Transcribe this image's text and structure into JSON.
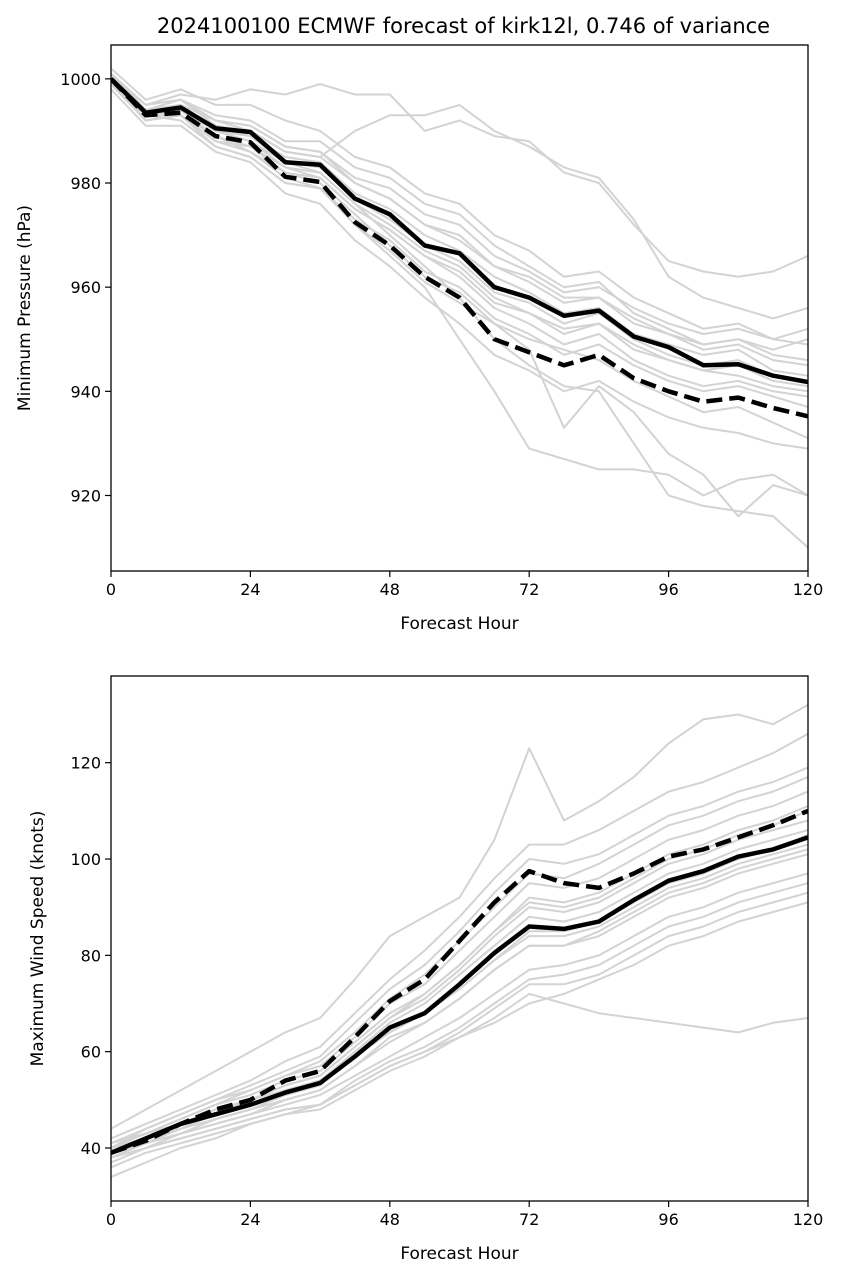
{
  "chart_data": [
    {
      "type": "line",
      "title": "2024100100 ECMWF forecast of kirk12l, 0.746 of variance",
      "xlabel": "Forecast Hour",
      "ylabel": "Minimum Pressure (hPa)",
      "xlim": [
        0,
        120
      ],
      "ylim": [
        905.5,
        1006.5
      ],
      "xticks": [
        0,
        24,
        48,
        72,
        96,
        120
      ],
      "yticks": [
        920,
        940,
        960,
        980,
        1000
      ],
      "grid": false,
      "colors": {
        "ensemble": "#d3d3d3",
        "highlight": "#000000"
      },
      "x": [
        0,
        6,
        12,
        18,
        24,
        30,
        36,
        42,
        48,
        54,
        60,
        66,
        72,
        78,
        84,
        90,
        96,
        102,
        108,
        114,
        120
      ],
      "series": [
        {
          "style": "solid",
          "values": [
            1000,
            993.5,
            994.5,
            990.5,
            989.8,
            984,
            983.5,
            977,
            974,
            968,
            966.5,
            960,
            958,
            954.5,
            955.5,
            950.5,
            948.5,
            945,
            945.2,
            943,
            941.8
          ]
        },
        {
          "style": "dashed",
          "values": [
            1000,
            993,
            993.5,
            989,
            987.8,
            981.2,
            980.2,
            972.5,
            968,
            962,
            958,
            950,
            947.5,
            945,
            947,
            942.5,
            940,
            938,
            938.8,
            936.8,
            935.2
          ]
        },
        {
          "style": "ensemble",
          "values": [
            1001,
            994,
            996,
            992,
            991,
            987,
            986,
            980,
            977,
            972,
            970,
            964,
            961,
            957,
            958,
            953,
            951,
            948,
            949,
            946,
            945
          ]
        },
        {
          "style": "ensemble",
          "values": [
            999,
            992,
            993,
            988,
            987,
            982,
            981,
            975,
            971,
            966,
            963,
            957,
            955,
            951,
            953,
            948,
            946,
            944,
            943,
            941,
            940
          ]
        },
        {
          "style": "ensemble",
          "values": [
            1002,
            996,
            998,
            995,
            995,
            992,
            990,
            985,
            983,
            978,
            976,
            970,
            967,
            962,
            963,
            958,
            955,
            952,
            953,
            950,
            949
          ]
        },
        {
          "style": "ensemble",
          "values": [
            998,
            991,
            991,
            986,
            984,
            978,
            976,
            969,
            964,
            958,
            953,
            947,
            944,
            940,
            942,
            938,
            935,
            933,
            932,
            930,
            929
          ]
        },
        {
          "style": "ensemble",
          "values": [
            1000,
            995,
            997,
            996,
            998,
            997,
            999,
            997,
            997,
            990,
            992,
            989,
            988,
            982,
            980,
            972,
            965,
            963,
            962,
            963,
            966
          ]
        },
        {
          "style": "ensemble",
          "values": [
            1000,
            994,
            995,
            992,
            990,
            986,
            985,
            990,
            993,
            993,
            995,
            990,
            987,
            983,
            981,
            973,
            962,
            958,
            956,
            954,
            956
          ]
        },
        {
          "style": "ensemble",
          "values": [
            999,
            993,
            992,
            987,
            985,
            980,
            979,
            972,
            966,
            960,
            950,
            940,
            929,
            927,
            925,
            925,
            924,
            920,
            923,
            924,
            920
          ]
        },
        {
          "style": "ensemble",
          "values": [
            1001,
            993,
            994,
            990,
            988,
            983,
            982,
            976,
            970,
            964,
            958,
            950,
            945,
            941,
            940,
            930,
            920,
            918,
            917,
            916,
            910
          ]
        },
        {
          "style": "ensemble",
          "values": [
            1000,
            992,
            993,
            989,
            986,
            981,
            979,
            972,
            967,
            961,
            957,
            953,
            948,
            933,
            941,
            936,
            928,
            924,
            916,
            922,
            920
          ]
        },
        {
          "style": "ensemble",
          "values": [
            1000,
            995,
            996,
            993,
            992,
            988,
            988,
            983,
            981,
            976,
            974,
            968,
            964,
            960,
            961,
            955,
            952,
            949,
            950,
            947,
            946
          ]
        },
        {
          "style": "ensemble",
          "values": [
            999,
            994,
            995,
            990,
            989,
            985,
            984,
            978,
            975,
            970,
            967,
            962,
            959,
            955,
            956,
            951,
            949,
            947,
            948,
            944,
            943
          ]
        },
        {
          "style": "ensemble",
          "values": [
            1001,
            993,
            994,
            991,
            989,
            984,
            983,
            977,
            973,
            968,
            965,
            959,
            957,
            953,
            955,
            950,
            947,
            945,
            946,
            943,
            942
          ]
        },
        {
          "style": "ensemble",
          "values": [
            1000,
            994,
            996,
            991,
            990,
            986,
            985,
            980,
            977,
            972,
            969,
            964,
            962,
            958,
            958,
            954,
            951,
            949,
            950,
            948,
            950
          ]
        },
        {
          "style": "ensemble",
          "values": [
            1000,
            993,
            994,
            989,
            987,
            983,
            981,
            975,
            971,
            966,
            962,
            956,
            953,
            949,
            951,
            946,
            943,
            941,
            942,
            940,
            939
          ]
        },
        {
          "style": "ensemble",
          "values": [
            999,
            992,
            993,
            987,
            985,
            980,
            979,
            973,
            969,
            963,
            960,
            954,
            951,
            947,
            949,
            945,
            942,
            940,
            941,
            939,
            937
          ]
        },
        {
          "style": "ensemble",
          "values": [
            1001,
            995,
            996,
            992,
            991,
            987,
            986,
            981,
            979,
            974,
            972,
            966,
            963,
            959,
            960,
            956,
            953,
            951,
            952,
            950,
            952
          ]
        },
        {
          "style": "ensemble",
          "values": [
            1000,
            994,
            995,
            990,
            988,
            984,
            982,
            976,
            972,
            967,
            964,
            958,
            955,
            952,
            953,
            949,
            946,
            944,
            945,
            942,
            941
          ]
        },
        {
          "style": "ensemble",
          "values": [
            1000,
            993,
            993,
            988,
            986,
            982,
            980,
            974,
            968,
            962,
            959,
            953,
            950,
            948,
            946,
            942,
            939,
            936,
            937,
            934,
            931
          ]
        }
      ]
    },
    {
      "type": "line",
      "xlabel": "Forecast Hour",
      "ylabel": "Maximum Wind Speed (knots)",
      "xlim": [
        0,
        120
      ],
      "ylim": [
        29,
        138
      ],
      "xticks": [
        0,
        24,
        48,
        72,
        96,
        120
      ],
      "yticks": [
        40,
        60,
        80,
        100,
        120
      ],
      "grid": false,
      "colors": {
        "ensemble": "#d3d3d3",
        "highlight": "#000000"
      },
      "x": [
        0,
        6,
        12,
        18,
        24,
        30,
        36,
        42,
        48,
        54,
        60,
        66,
        72,
        78,
        84,
        90,
        96,
        102,
        108,
        114,
        120
      ],
      "series": [
        {
          "style": "solid",
          "values": [
            39,
            42,
            45,
            47,
            49,
            51.5,
            53.5,
            59,
            65,
            68,
            74,
            80.5,
            86,
            85.5,
            87,
            91.5,
            95.5,
            97.5,
            100.5,
            102,
            104.5
          ]
        },
        {
          "style": "dashed",
          "values": [
            39,
            41.5,
            45,
            48,
            50,
            54,
            56,
            63,
            70.5,
            75,
            83,
            91,
            97.5,
            95,
            94,
            97,
            100.5,
            102,
            104.5,
            107,
            110
          ]
        },
        {
          "style": "ensemble",
          "values": [
            38,
            41,
            43,
            46,
            48,
            50,
            52,
            57,
            62,
            66,
            71,
            77,
            82,
            82,
            84,
            88,
            92,
            94,
            97,
            99,
            101
          ]
        },
        {
          "style": "ensemble",
          "values": [
            40,
            43,
            46,
            49,
            51,
            54,
            56,
            62,
            68,
            72,
            78,
            85,
            91,
            90,
            92,
            96,
            100,
            102,
            105,
            107,
            110
          ]
        },
        {
          "style": "ensemble",
          "values": [
            37,
            40,
            42,
            44,
            46,
            48,
            49,
            53,
            57,
            60,
            64,
            69,
            74,
            74,
            76,
            80,
            84,
            86,
            89,
            91,
            93
          ]
        },
        {
          "style": "ensemble",
          "values": [
            41,
            44,
            47,
            50,
            53,
            56,
            59,
            66,
            73,
            78,
            85,
            93,
            100,
            99,
            101,
            105,
            109,
            111,
            114,
            116,
            119
          ]
        },
        {
          "style": "ensemble",
          "values": [
            39,
            42,
            44,
            47,
            49,
            52,
            54,
            60,
            66,
            70,
            76,
            82,
            88,
            87,
            89,
            93,
            97,
            99,
            102,
            104,
            106
          ]
        },
        {
          "style": "ensemble",
          "values": [
            36,
            39,
            41,
            43,
            45,
            47,
            48,
            52,
            56,
            59,
            63,
            66,
            70,
            72,
            75,
            78,
            82,
            84,
            87,
            89,
            91
          ]
        },
        {
          "style": "ensemble",
          "values": [
            42,
            45,
            48,
            51,
            54,
            58,
            61,
            68,
            75,
            81,
            88,
            96,
            103,
            103,
            106,
            110,
            114,
            116,
            119,
            122,
            126
          ]
        },
        {
          "style": "ensemble",
          "values": [
            38,
            41,
            44,
            46,
            48,
            51,
            53,
            59,
            64,
            68,
            73,
            79,
            84,
            84,
            86,
            90,
            94,
            96,
            99,
            101,
            103
          ]
        },
        {
          "style": "ensemble",
          "values": [
            40,
            42,
            45,
            48,
            50,
            53,
            55,
            61,
            67,
            71,
            77,
            84,
            90,
            89,
            91,
            95,
            99,
            101,
            104,
            106,
            108
          ]
        },
        {
          "style": "ensemble",
          "values": [
            39,
            41,
            43,
            45,
            47,
            49,
            51,
            55,
            59,
            63,
            67,
            72,
            77,
            78,
            80,
            84,
            88,
            90,
            93,
            95,
            97
          ]
        },
        {
          "style": "ensemble",
          "values": [
            41,
            43,
            46,
            49,
            52,
            55,
            57,
            63,
            70,
            74,
            81,
            88,
            95,
            94,
            96,
            100,
            104,
            106,
            109,
            111,
            114
          ]
        },
        {
          "style": "ensemble",
          "values": [
            37,
            40,
            43,
            45,
            47,
            50,
            52,
            57,
            63,
            66,
            71,
            77,
            82,
            82,
            85,
            89,
            93,
            95,
            98,
            100,
            102
          ]
        },
        {
          "style": "ensemble",
          "values": [
            40,
            44,
            47,
            50,
            52,
            55,
            58,
            64,
            71,
            76,
            83,
            90,
            97,
            96,
            99,
            103,
            107,
            109,
            112,
            114,
            117
          ]
        },
        {
          "style": "ensemble",
          "values": [
            38,
            40,
            42,
            44,
            46,
            48,
            49,
            54,
            58,
            61,
            65,
            70,
            75,
            76,
            78,
            82,
            86,
            88,
            91,
            93,
            95
          ]
        },
        {
          "style": "ensemble",
          "values": [
            39,
            42,
            45,
            47,
            50,
            53,
            55,
            61,
            67,
            72,
            78,
            85,
            92,
            91,
            93,
            97,
            101,
            103,
            106,
            108,
            111
          ]
        },
        {
          "style": "ensemble",
          "values": [
            40,
            43,
            45,
            48,
            50,
            52,
            54,
            59,
            64,
            68,
            73,
            79,
            85,
            85,
            87,
            91,
            95,
            97,
            100,
            102,
            105
          ]
        },
        {
          "style": "ensemble",
          "values": [
            44,
            48,
            52,
            56,
            60,
            64,
            67,
            75,
            84,
            88,
            92,
            104,
            123,
            108,
            112,
            117,
            124,
            129,
            130,
            128,
            132
          ]
        },
        {
          "style": "ensemble",
          "values": [
            34,
            37,
            40,
            42,
            45,
            47,
            49,
            53,
            57,
            60,
            63,
            67,
            72,
            70,
            68,
            67,
            66,
            65,
            64,
            66,
            67
          ]
        }
      ]
    }
  ]
}
